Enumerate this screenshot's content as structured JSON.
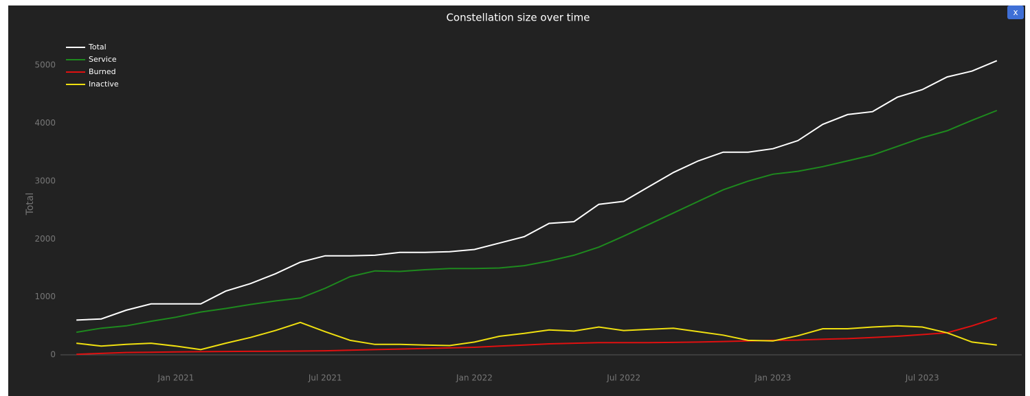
{
  "chart_data": {
    "type": "line",
    "title": "Constellation size over time",
    "y_label": "Total",
    "x": [
      "2020-09",
      "2020-10",
      "2020-11",
      "2020-12",
      "2021-01",
      "2021-02",
      "2021-03",
      "2021-04",
      "2021-05",
      "2021-06",
      "2021-07",
      "2021-08",
      "2021-09",
      "2021-10",
      "2021-11",
      "2021-12",
      "2022-01",
      "2022-02",
      "2022-03",
      "2022-04",
      "2022-05",
      "2022-06",
      "2022-07",
      "2022-08",
      "2022-09",
      "2022-10",
      "2022-11",
      "2022-12",
      "2023-01",
      "2023-02",
      "2023-03",
      "2023-04",
      "2023-05",
      "2023-06",
      "2023-07",
      "2023-08",
      "2023-09",
      "2023-10"
    ],
    "series": [
      {
        "name": "Total",
        "color": "#ffffff",
        "values": [
          600,
          620,
          770,
          880,
          880,
          880,
          1100,
          1230,
          1400,
          1600,
          1710,
          1710,
          1720,
          1770,
          1770,
          1780,
          1820,
          1930,
          2040,
          2270,
          2300,
          2600,
          2650,
          2900,
          3150,
          3350,
          3500,
          3500,
          3560,
          3700,
          3980,
          4150,
          4200,
          4450,
          4580,
          4800,
          4900,
          5080
        ]
      },
      {
        "name": "Service",
        "color": "#1e8a1e",
        "values": [
          390,
          460,
          500,
          580,
          650,
          740,
          800,
          870,
          930,
          980,
          1150,
          1350,
          1450,
          1440,
          1470,
          1490,
          1490,
          1500,
          1540,
          1620,
          1720,
          1860,
          2050,
          2250,
          2450,
          2650,
          2850,
          3000,
          3120,
          3170,
          3250,
          3350,
          3450,
          3600,
          3750,
          3870,
          4050,
          4220
        ]
      },
      {
        "name": "Burned",
        "color": "#e01010",
        "values": [
          10,
          25,
          40,
          45,
          50,
          55,
          58,
          60,
          62,
          65,
          70,
          80,
          90,
          100,
          110,
          120,
          130,
          150,
          170,
          190,
          200,
          210,
          210,
          210,
          215,
          220,
          230,
          240,
          250,
          255,
          270,
          280,
          300,
          320,
          350,
          380,
          500,
          640
        ]
      },
      {
        "name": "Inactive",
        "color": "#f0e010",
        "values": [
          200,
          150,
          180,
          200,
          150,
          90,
          200,
          300,
          420,
          560,
          400,
          250,
          180,
          180,
          170,
          160,
          220,
          320,
          370,
          430,
          410,
          480,
          420,
          440,
          460,
          400,
          340,
          250,
          240,
          330,
          450,
          450,
          480,
          500,
          480,
          380,
          220,
          170
        ]
      }
    ],
    "xlim": [
      "2020-08",
      "2023-11"
    ],
    "xticks": [
      {
        "value": "2021-01",
        "label": "Jan 2021"
      },
      {
        "value": "2021-07",
        "label": "Jul 2021"
      },
      {
        "value": "2022-01",
        "label": "Jan 2022"
      },
      {
        "value": "2022-07",
        "label": "Jul 2022"
      },
      {
        "value": "2023-01",
        "label": "Jan 2023"
      },
      {
        "value": "2023-07",
        "label": "Jul 2023"
      }
    ],
    "ylim": [
      0,
      5500
    ],
    "yticks": [
      0,
      1000,
      2000,
      3000,
      4000,
      5000
    ],
    "legend": "top-left",
    "grid": false
  },
  "close_button": "x"
}
